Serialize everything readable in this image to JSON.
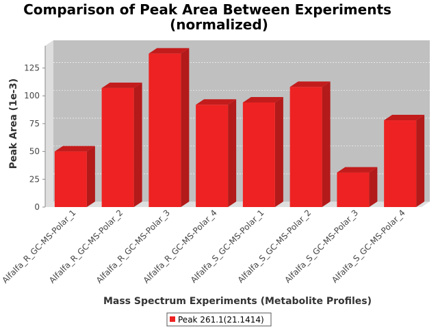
{
  "chart_data": {
    "type": "bar",
    "title": "Comparison of Peak Area Between Experiments",
    "subtitle": "(normalized)",
    "xlabel": "Mass Spectrum Experiments (Metabolite Profiles)",
    "ylabel": "Peak Area (1e-3)",
    "ylim": [
      0,
      145
    ],
    "yticks": [
      "0",
      "25",
      "50",
      "75",
      "100",
      "125"
    ],
    "grid": true,
    "legend_position": "bottom",
    "categories": [
      "Alfalfa_R_GC-MS-Polar_1",
      "Alfalfa_R_GC-MS-Polar_2",
      "Alfalfa_R_GC-MS-Polar_3",
      "Alfalfa_R_GC-MS-Polar_4",
      "Alfalfa_S_GC-MS-Polar_1",
      "Alfalfa_S_GC-MS-Polar_2",
      "Alfalfa_S_GC-MS-Polar_3",
      "Alfalfa_S_GC-MS-Polar_4"
    ],
    "series": [
      {
        "name": "Peak 261.1(21.1414)",
        "color": "#ee2222",
        "values": [
          50,
          107,
          138,
          92,
          94,
          108,
          31,
          78
        ]
      }
    ]
  }
}
